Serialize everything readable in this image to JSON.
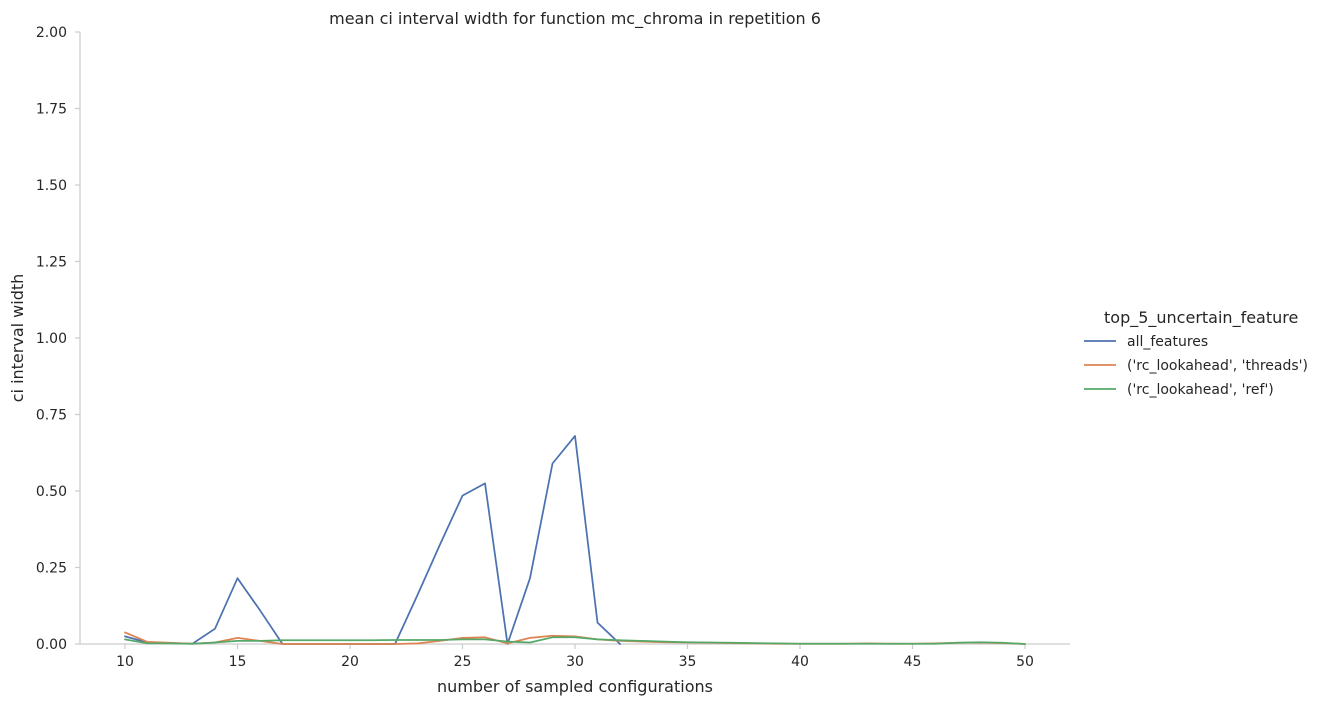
{
  "chart_data": {
    "type": "line",
    "title": "mean ci interval width for function mc_chroma in repetition 6",
    "xlabel": "number of sampled configurations",
    "ylabel": "ci interval width",
    "xlim": [
      8,
      52
    ],
    "ylim": [
      0,
      2.0
    ],
    "xticks": [
      10,
      15,
      20,
      25,
      30,
      35,
      40,
      45,
      50
    ],
    "yticks": [
      0.0,
      0.25,
      0.5,
      0.75,
      1.0,
      1.25,
      1.5,
      1.75,
      2.0
    ],
    "grid": false,
    "legend": {
      "title": "top_5_uncertain_feature",
      "placement": "right"
    },
    "series": [
      {
        "name": "all_features",
        "color": "#4c72b0",
        "x": [
          10,
          11,
          12,
          13,
          14,
          15,
          16,
          17,
          18,
          19,
          20,
          21,
          22,
          23,
          24,
          25,
          26,
          27,
          28,
          29,
          30,
          31,
          32
        ],
        "y": [
          0.025,
          0.005,
          0.003,
          0.001,
          0.05,
          0.215,
          0.11,
          0.0,
          0.0,
          0.0,
          0.0,
          0.0,
          0.0,
          0.16,
          0.325,
          0.485,
          0.525,
          0.0,
          0.215,
          0.59,
          0.68,
          0.07,
          0.0
        ]
      },
      {
        "name": "('rc_lookahead', 'threads')",
        "color": "#dd8452",
        "x": [
          10,
          11,
          12,
          13,
          14,
          15,
          16,
          17,
          18,
          19,
          20,
          21,
          22,
          23,
          24,
          25,
          26,
          27,
          28,
          29,
          30,
          31,
          32,
          33,
          34,
          35,
          36,
          37,
          38,
          39,
          40,
          41,
          42,
          43,
          44,
          45,
          46,
          47,
          48,
          49,
          50
        ],
        "y": [
          0.038,
          0.007,
          0.004,
          0.001,
          0.005,
          0.02,
          0.01,
          0.0,
          0.0,
          0.0,
          0.0,
          0.0,
          0.0,
          0.002,
          0.01,
          0.02,
          0.022,
          0.002,
          0.02,
          0.027,
          0.025,
          0.015,
          0.01,
          0.008,
          0.006,
          0.005,
          0.004,
          0.003,
          0.002,
          0.001,
          0.001,
          0.001,
          0.001,
          0.002,
          0.001,
          0.001,
          0.002,
          0.004,
          0.005,
          0.003,
          0.0
        ]
      },
      {
        "name": "('rc_lookahead', 'ref')",
        "color": "#55a868",
        "x": [
          10,
          11,
          12,
          13,
          14,
          15,
          16,
          17,
          18,
          19,
          20,
          21,
          22,
          23,
          24,
          25,
          26,
          27,
          28,
          29,
          30,
          31,
          32,
          33,
          34,
          35,
          36,
          37,
          38,
          39,
          40,
          41,
          42,
          43,
          44,
          45,
          46,
          47,
          48,
          49,
          50
        ],
        "y": [
          0.015,
          0.002,
          0.002,
          0.001,
          0.005,
          0.01,
          0.01,
          0.012,
          0.012,
          0.012,
          0.012,
          0.012,
          0.013,
          0.013,
          0.013,
          0.015,
          0.015,
          0.008,
          0.005,
          0.022,
          0.022,
          0.015,
          0.012,
          0.01,
          0.008,
          0.006,
          0.005,
          0.004,
          0.003,
          0.002,
          0.001,
          0.001,
          0.001,
          0.001,
          0.001,
          0.001,
          0.001,
          0.004,
          0.006,
          0.004,
          0.0
        ]
      }
    ]
  }
}
